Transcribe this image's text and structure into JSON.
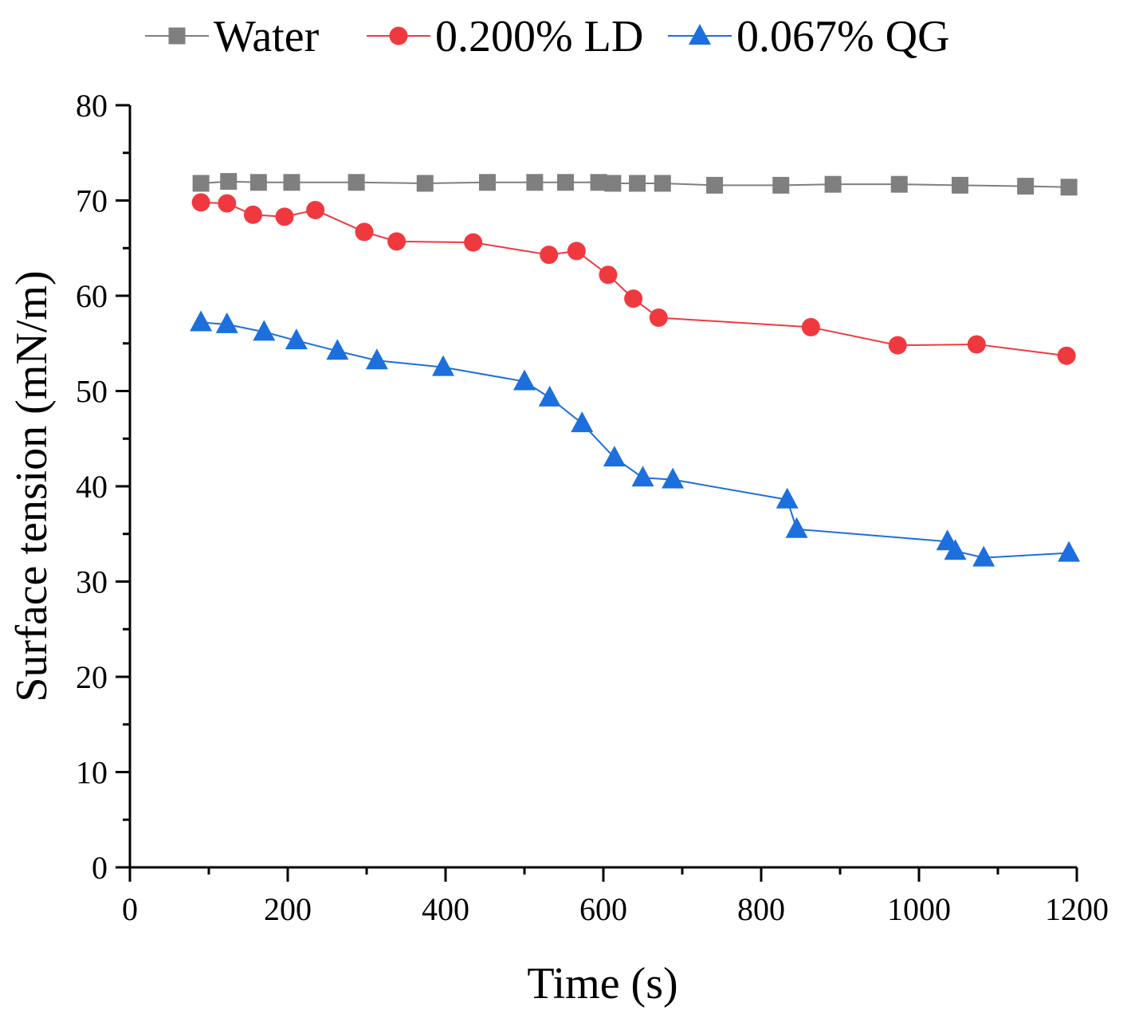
{
  "chart_data": {
    "type": "line",
    "title": "",
    "xlabel": "Time (s)",
    "ylabel": "Surface tension (mN/m)",
    "xlim": [
      0,
      1200
    ],
    "ylim": [
      0,
      80
    ],
    "xticks": [
      0,
      200,
      400,
      600,
      800,
      1000,
      1200
    ],
    "yticks": [
      0,
      10,
      20,
      30,
      40,
      50,
      60,
      70,
      80
    ],
    "legend_position": "top",
    "grid": false,
    "series": [
      {
        "name": "Water",
        "color": "#7f7f7f",
        "marker": "square",
        "x": [
          90,
          125,
          163,
          205,
          287,
          374,
          453,
          513,
          552,
          594,
          612,
          643,
          675,
          741,
          825,
          891,
          975,
          1052,
          1135,
          1190
        ],
        "y": [
          71.8,
          72.0,
          71.9,
          71.9,
          71.9,
          71.8,
          71.9,
          71.9,
          71.9,
          71.9,
          71.8,
          71.8,
          71.8,
          71.6,
          71.6,
          71.7,
          71.7,
          71.6,
          71.5,
          71.4
        ]
      },
      {
        "name": "0.200% LD",
        "color": "#f0393f",
        "marker": "circle",
        "x": [
          90,
          123,
          156,
          196,
          235,
          297,
          338,
          435,
          531,
          566,
          606,
          638,
          670,
          863,
          973,
          1073,
          1187
        ],
        "y": [
          69.8,
          69.7,
          68.5,
          68.3,
          69.0,
          66.7,
          65.7,
          65.6,
          64.3,
          64.7,
          62.2,
          59.7,
          57.7,
          56.7,
          54.8,
          54.9,
          53.7
        ]
      },
      {
        "name": "0.067% QG",
        "color": "#1c6fdc",
        "marker": "triangle",
        "x": [
          90,
          123,
          170,
          211,
          263,
          313,
          397,
          500,
          532,
          573,
          614,
          650,
          688,
          833,
          845,
          1036,
          1046,
          1082,
          1190
        ],
        "y": [
          57.2,
          57.0,
          56.2,
          55.3,
          54.2,
          53.2,
          52.5,
          51.0,
          49.3,
          46.6,
          43.0,
          40.9,
          40.7,
          38.6,
          35.5,
          34.2,
          33.2,
          32.5,
          33.0
        ]
      }
    ]
  }
}
